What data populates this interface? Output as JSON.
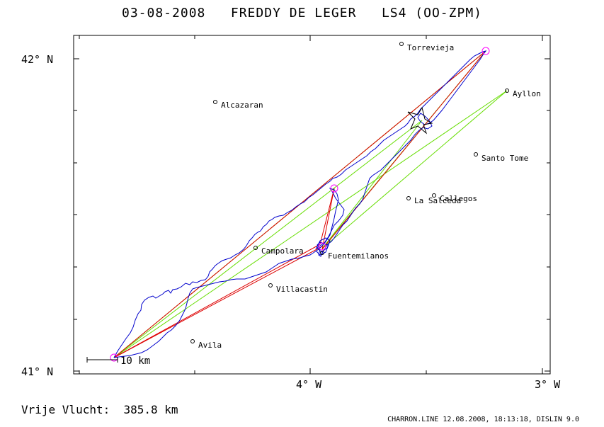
{
  "header": {
    "title": "03-08-2008   FREDDY DE LEGER   LS4 (OO-ZPM)"
  },
  "map": {
    "axis_labels": {
      "lat_top": "42° N",
      "lat_bottom": "41° N",
      "lon_middle": "4° W",
      "lon_right": "3° W"
    },
    "scale_label": "10 km",
    "towns": [
      {
        "name": "Torrevieja"
      },
      {
        "name": "Alcazaran"
      },
      {
        "name": "Ayllon"
      },
      {
        "name": "Santo Tome"
      },
      {
        "name": "Callegos"
      },
      {
        "name": "La Salceda"
      },
      {
        "name": "Campolara"
      },
      {
        "name": "Fuentemilanos"
      },
      {
        "name": "Villacastin"
      },
      {
        "name": "Avila"
      }
    ],
    "colors": {
      "track": "#0000cc",
      "declared_task": "#66dd00",
      "free_flight": "#dd0000",
      "frame": "#000000",
      "turnpoint": "#ff00ff"
    }
  },
  "footer": {
    "distance_text": "Vrije Vlucht:  385.8 km",
    "credit_text": "CHARRON.LINE 12.08.2008, 18:13:18, DISLIN 9.0"
  }
}
